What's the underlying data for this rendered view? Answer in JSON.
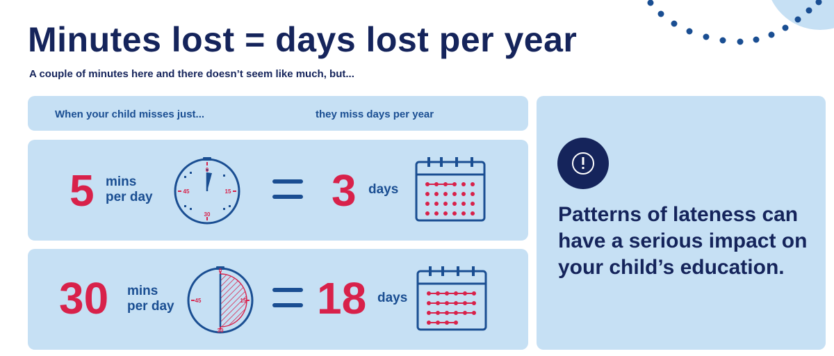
{
  "title": "Minutes lost = days lost per year",
  "subtitle": "A couple of minutes here and there doesn’t seem like much, but...",
  "table_header": {
    "left": "When your child misses just...",
    "right": "they miss days per year"
  },
  "rows": [
    {
      "minutes": "5",
      "minutes_unit_line1": "mins",
      "minutes_unit_line2": "per day",
      "days": "3",
      "days_unit": "days",
      "clock_fraction": 0.0833,
      "clock_ticks": [
        "0",
        "15",
        "30",
        "45"
      ]
    },
    {
      "minutes": "30",
      "minutes_unit_line1": "mins",
      "minutes_unit_line2": "per day",
      "days": "18",
      "days_unit": "days",
      "clock_fraction": 0.5,
      "clock_ticks": [
        "0",
        "15",
        "30",
        "45"
      ]
    }
  ],
  "message": "Patterns of lateness can have a serious impact on your child’s education.",
  "icons": {
    "clock": "stopwatch-icon",
    "calendar": "calendar-icon",
    "alert": "exclamation-circle-icon",
    "decor": "dotted-arc-decoration"
  },
  "colors": {
    "navy": "#15245b",
    "blue": "#1a4e92",
    "red": "#d8214a",
    "panel": "#c6e0f4"
  }
}
